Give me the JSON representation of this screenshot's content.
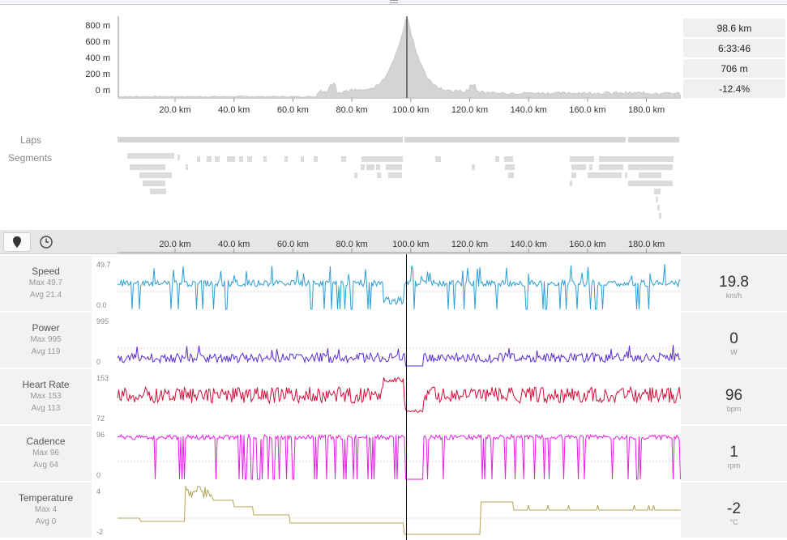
{
  "elevation": {
    "y_ticks": [
      "800 m",
      "600 m",
      "400 m",
      "200 m",
      "0 m"
    ],
    "x_ticks": [
      "20.0 km",
      "40.0 km",
      "60.0 km",
      "80.0 km",
      "100.0 km",
      "120.0 km",
      "140.0 km",
      "160.0 km",
      "180.0 km"
    ],
    "stats": [
      "98.6 km",
      "6:33:46",
      "706 m",
      "-12.4%"
    ]
  },
  "laps_label": "Laps",
  "segments_label": "Segments",
  "tabs": {
    "distance_icon": "location-pin-icon",
    "time_icon": "clock-icon"
  },
  "axis_ticks": [
    "20.0 km",
    "40.0 km",
    "60.0 km",
    "80.0 km",
    "100.0 km",
    "120.0 km",
    "140.0 km",
    "160.0 km",
    "180.0 km"
  ],
  "metrics": [
    {
      "name": "Speed",
      "max": "Max 49.7",
      "avg": "Avg 21.4",
      "top": "49.7",
      "bottom": "0.0",
      "value": "19.8",
      "unit": "km/h",
      "color": "#2a9fd6"
    },
    {
      "name": "Power",
      "max": "Max 995",
      "avg": "Avg 119",
      "top": "995",
      "bottom": "0",
      "value": "0",
      "unit": "W",
      "color": "#5a2dd1"
    },
    {
      "name": "Heart Rate",
      "max": "Max 153",
      "avg": "Avg 113",
      "top": "153",
      "bottom": "72",
      "value": "96",
      "unit": "bpm",
      "color": "#d0103a"
    },
    {
      "name": "Cadence",
      "max": "Max 96",
      "avg": "Avg 64",
      "top": "96",
      "bottom": "0",
      "value": "1",
      "unit": "rpm",
      "color": "#e61ee6"
    },
    {
      "name": "Temperature",
      "max": "Max 4",
      "avg": "Avg 0",
      "top": "4",
      "bottom": "-2",
      "value": "-2",
      "unit": "°C",
      "color": "#b5a55a"
    }
  ]
}
